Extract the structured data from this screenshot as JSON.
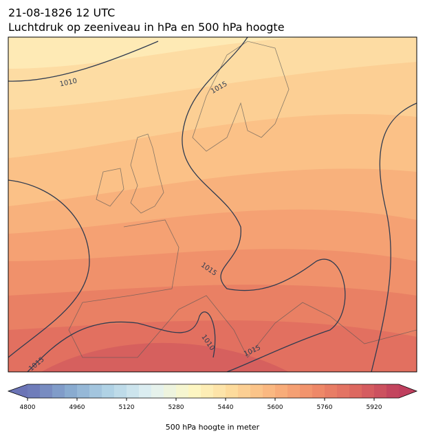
{
  "title": "21-08-1826 12 UTC",
  "subtitle": "Luchtdruk op zeeniveau in hPa en 500 hPa hoogte",
  "contour_labels": [
    "1010",
    "1015",
    "1015",
    "1010",
    "1015",
    "1015"
  ],
  "colorbar": {
    "label": "500 hPa hoogte in meter",
    "clim": [
      4800,
      6000
    ],
    "ticks": [
      4800,
      4960,
      5120,
      5280,
      5440,
      5600,
      5760,
      5920
    ],
    "colormap": [
      "#6b74b6",
      "#87a9cf",
      "#b2d4e6",
      "#e2f1f3",
      "#fdf7c4",
      "#fdd99a",
      "#f9b27c",
      "#ef8a68",
      "#dc6660",
      "#bf3f5e"
    ]
  }
}
